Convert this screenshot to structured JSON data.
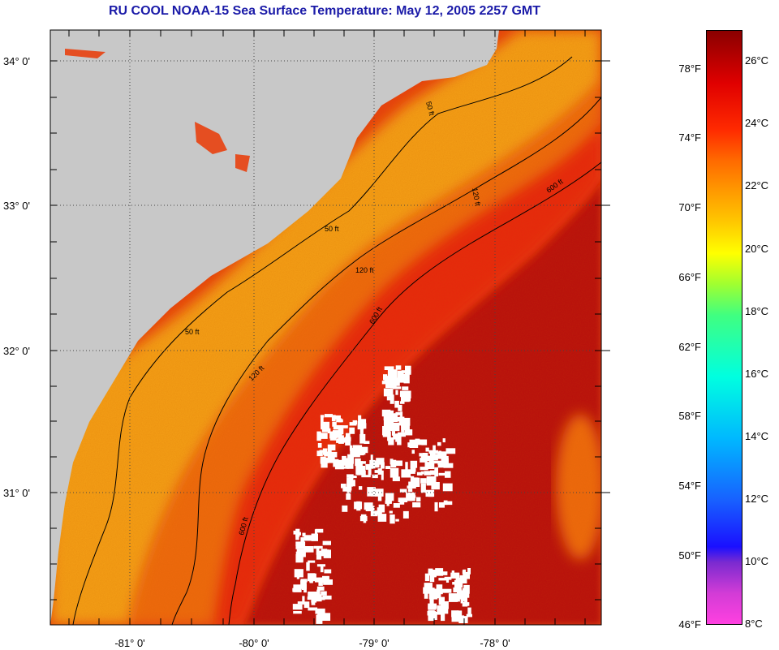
{
  "title": "RU COOL  NOAA-15  Sea Surface Temperature:  May 12, 2005 2257 GMT",
  "map": {
    "lat_labels": [
      "34° 0'",
      "33° 0'",
      "32° 0'",
      "31° 0'"
    ],
    "lon_labels": [
      "-81° 0'",
      "-80° 0'",
      "-79° 0'",
      "-78° 0'"
    ],
    "contour_labels": [
      "50 ft",
      "120 ft",
      "600 ft"
    ],
    "colors": {
      "land": "#c8c8c8",
      "shelf_yellow": "#f7d21a",
      "shelf_orange": "#f5a014",
      "mid_orange": "#ef6a10",
      "offshore_red": "#e8260c",
      "gulf_stream": "#b80808",
      "cloud": "#ffffff"
    }
  },
  "colorbar": {
    "fahrenheit": [
      "78°F",
      "74°F",
      "70°F",
      "66°F",
      "62°F",
      "58°F",
      "54°F",
      "50°F",
      "46°F"
    ],
    "celsius": [
      "26°C",
      "24°C",
      "22°C",
      "20°C",
      "18°C",
      "16°C",
      "14°C",
      "12°C",
      "10°C",
      "8°C"
    ],
    "range_c": [
      8,
      27.2
    ]
  }
}
